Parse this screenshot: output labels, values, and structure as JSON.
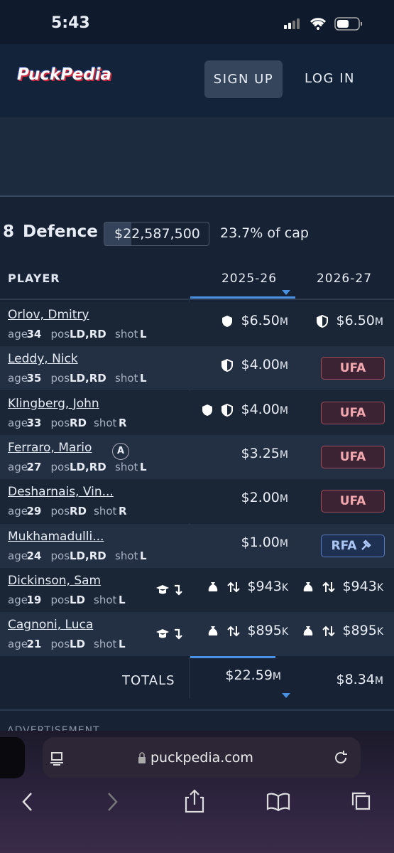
{
  "status_bar": {
    "time": "5:43"
  },
  "header": {
    "logo": "PuckPedia",
    "sign_up": "SIGN UP",
    "log_in": "LOG IN"
  },
  "section": {
    "number": "8",
    "title": "Defence",
    "cap_hit": "$22,587,500",
    "cap_share": "23.7% of cap"
  },
  "table": {
    "columns": [
      "PLAYER",
      "2025-26",
      "2026-27"
    ],
    "field_labels": {
      "age": "age",
      "pos": "pos",
      "shot": "shot"
    },
    "rows": [
      {
        "name": "Orlov, Dmitry",
        "age": 34,
        "pos": "LD,RD",
        "shot": "L",
        "cells": [
          {
            "amount": "$6.50",
            "unit": "M"
          },
          {
            "amount": "$6.50",
            "unit": "M"
          }
        ]
      },
      {
        "name": "Leddy, Nick",
        "age": 35,
        "pos": "LD,RD",
        "shot": "L",
        "cells": [
          {
            "amount": "$4.00",
            "unit": "M"
          },
          {
            "status": "UFA"
          }
        ]
      },
      {
        "name": "Klingberg, John",
        "age": 33,
        "pos": "RD",
        "shot": "R",
        "cells": [
          {
            "amount": "$4.00",
            "unit": "M"
          },
          {
            "status": "UFA"
          }
        ]
      },
      {
        "name": "Ferraro, Mario",
        "badge": "A",
        "age": 27,
        "pos": "LD,RD",
        "shot": "L",
        "cells": [
          {
            "amount": "$3.25",
            "unit": "M"
          },
          {
            "status": "UFA"
          }
        ]
      },
      {
        "name": "Desharnais, Vin...",
        "age": 29,
        "pos": "RD",
        "shot": "R",
        "cells": [
          {
            "amount": "$2.00",
            "unit": "M"
          },
          {
            "status": "UFA"
          }
        ]
      },
      {
        "name": "Mukhamadulli...",
        "age": 24,
        "pos": "LD,RD",
        "shot": "L",
        "cells": [
          {
            "amount": "$1.00",
            "unit": "M"
          },
          {
            "status": "RFA"
          }
        ]
      },
      {
        "name": "Dickinson, Sam",
        "age": 19,
        "pos": "LD",
        "shot": "L",
        "cells": [
          {
            "amount": "$943",
            "unit": "K"
          },
          {
            "amount": "$943",
            "unit": "K"
          }
        ]
      },
      {
        "name": "Cagnoni, Luca",
        "age": 21,
        "pos": "LD",
        "shot": "L",
        "cells": [
          {
            "amount": "$895",
            "unit": "K"
          },
          {
            "amount": "$895",
            "unit": "K"
          }
        ]
      }
    ]
  },
  "totals": {
    "label": "TOTALS",
    "cells": [
      {
        "amount": "$22.59",
        "unit": "M"
      },
      {
        "amount": "$8.34",
        "unit": "M"
      }
    ]
  },
  "advertisement": "ADVERTISEMENT",
  "browser": {
    "url": "puckpedia.com"
  }
}
